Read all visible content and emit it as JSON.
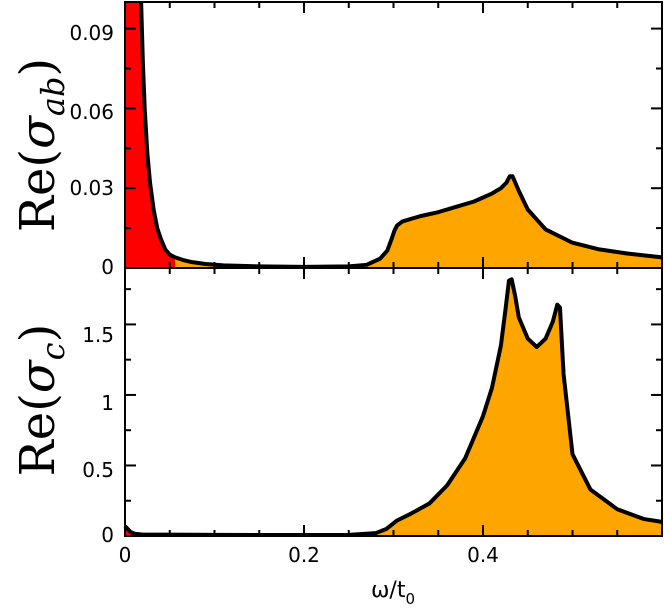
{
  "colors": {
    "low_energy_fill": "#ff0000",
    "high_energy_fill": "#ffa500",
    "curve": "#000000",
    "frame": "#000000"
  },
  "chart_data": [
    {
      "type": "area",
      "ylabel": {
        "base": "Re",
        "symbol": "σ",
        "subscript": "ab"
      },
      "xlim": [
        0,
        0.6
      ],
      "ylim": [
        0,
        0.1
      ],
      "yticks": [
        0,
        0.03,
        0.06,
        0.09
      ],
      "ytick_labels": [
        "0",
        "0.03",
        "0.06",
        "0.09"
      ],
      "xticks": [
        0,
        0.2,
        0.4
      ],
      "fill_split_x": 0.056,
      "x": [
        0.018,
        0.02,
        0.022,
        0.025,
        0.028,
        0.032,
        0.036,
        0.04,
        0.045,
        0.05,
        0.056,
        0.065,
        0.075,
        0.09,
        0.11,
        0.15,
        0.2,
        0.25,
        0.27,
        0.285,
        0.293,
        0.298,
        0.301,
        0.304,
        0.31,
        0.33,
        0.35,
        0.37,
        0.39,
        0.41,
        0.42,
        0.426,
        0.43,
        0.433,
        0.44,
        0.45,
        0.47,
        0.5,
        0.53,
        0.56,
        0.6
      ],
      "y": [
        0.1,
        0.077,
        0.06,
        0.043,
        0.032,
        0.022,
        0.015,
        0.011,
        0.007,
        0.005,
        0.004,
        0.003,
        0.0022,
        0.0015,
        0.001,
        0.0006,
        0.0004,
        0.0006,
        0.0012,
        0.0035,
        0.0065,
        0.011,
        0.014,
        0.016,
        0.0175,
        0.0195,
        0.021,
        0.023,
        0.025,
        0.028,
        0.03,
        0.032,
        0.0345,
        0.0345,
        0.029,
        0.022,
        0.0145,
        0.0095,
        0.007,
        0.0055,
        0.004
      ]
    },
    {
      "type": "area",
      "ylabel": {
        "base": "Re",
        "symbol": "σ",
        "subscript": "c"
      },
      "xlabel": {
        "base": "ω/t",
        "subscript": "0"
      },
      "xlim": [
        0,
        0.6
      ],
      "ylim": [
        0,
        1.9
      ],
      "yticks": [
        0,
        0.5,
        1,
        1.5
      ],
      "ytick_labels": [
        "0",
        "0.5",
        "1",
        "1.5"
      ],
      "xticks": [
        0,
        0.2,
        0.4
      ],
      "xtick_labels": [
        "0",
        "0.2",
        "0.4"
      ],
      "fill_split_x": 0.012,
      "x": [
        0,
        0.003,
        0.006,
        0.009,
        0.012,
        0.02,
        0.05,
        0.1,
        0.15,
        0.2,
        0.25,
        0.28,
        0.292,
        0.298,
        0.304,
        0.32,
        0.34,
        0.36,
        0.38,
        0.4,
        0.41,
        0.42,
        0.425,
        0.429,
        0.432,
        0.436,
        0.44,
        0.45,
        0.46,
        0.47,
        0.478,
        0.483,
        0.486,
        0.49,
        0.5,
        0.52,
        0.55,
        0.58,
        0.6
      ],
      "y": [
        0.07,
        0.05,
        0.03,
        0.02,
        0.015,
        0.01,
        0.01,
        0.008,
        0.007,
        0.007,
        0.008,
        0.02,
        0.05,
        0.08,
        0.11,
        0.16,
        0.23,
        0.36,
        0.55,
        0.85,
        1.05,
        1.35,
        1.6,
        1.81,
        1.82,
        1.7,
        1.55,
        1.4,
        1.34,
        1.4,
        1.52,
        1.64,
        1.62,
        1.15,
        0.58,
        0.33,
        0.19,
        0.12,
        0.1
      ]
    }
  ]
}
